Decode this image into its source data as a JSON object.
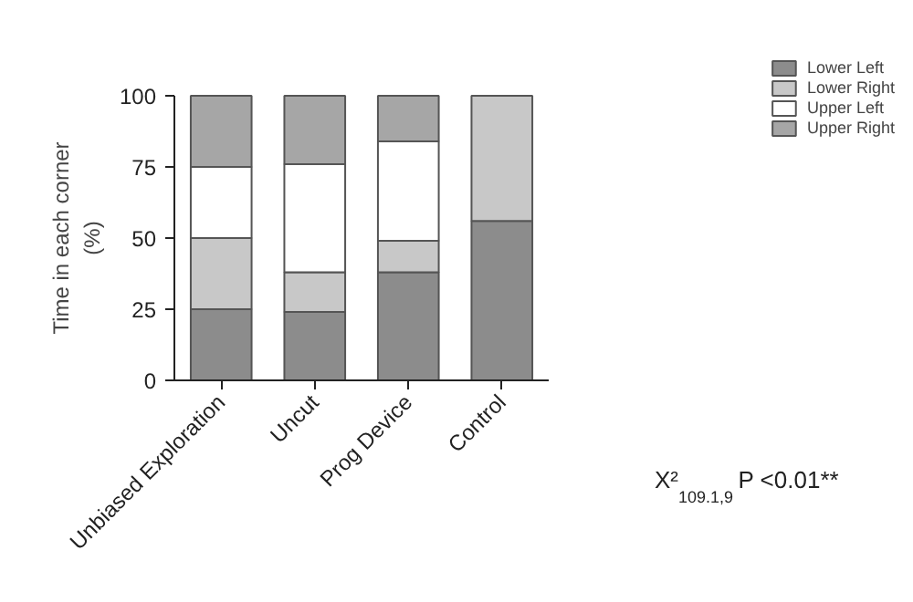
{
  "chart_data": {
    "type": "bar",
    "stacked": true,
    "ylabel": "Time in each corner\n(%)",
    "categories": [
      "Unbiased Exploration",
      "Uncut",
      "Prog Device",
      "Control"
    ],
    "series": [
      {
        "name": "Lower Left",
        "color": "#8c8c8c",
        "values": [
          25,
          24,
          38,
          56
        ]
      },
      {
        "name": "Lower Right",
        "color": "#c8c8c8",
        "values": [
          25,
          14,
          11,
          44
        ]
      },
      {
        "name": "Upper Left",
        "color": "#ffffff",
        "values": [
          25,
          38,
          35,
          0
        ]
      },
      {
        "name": "Upper Right",
        "color": "#a6a6a6",
        "values": [
          25,
          24,
          16,
          0
        ]
      }
    ],
    "ylim": [
      0,
      100
    ],
    "yticks": [
      0,
      25,
      50,
      75,
      100
    ],
    "legend": "top right",
    "annotations": [
      "X²$_{109.1,9}$ P <0.01**"
    ]
  }
}
